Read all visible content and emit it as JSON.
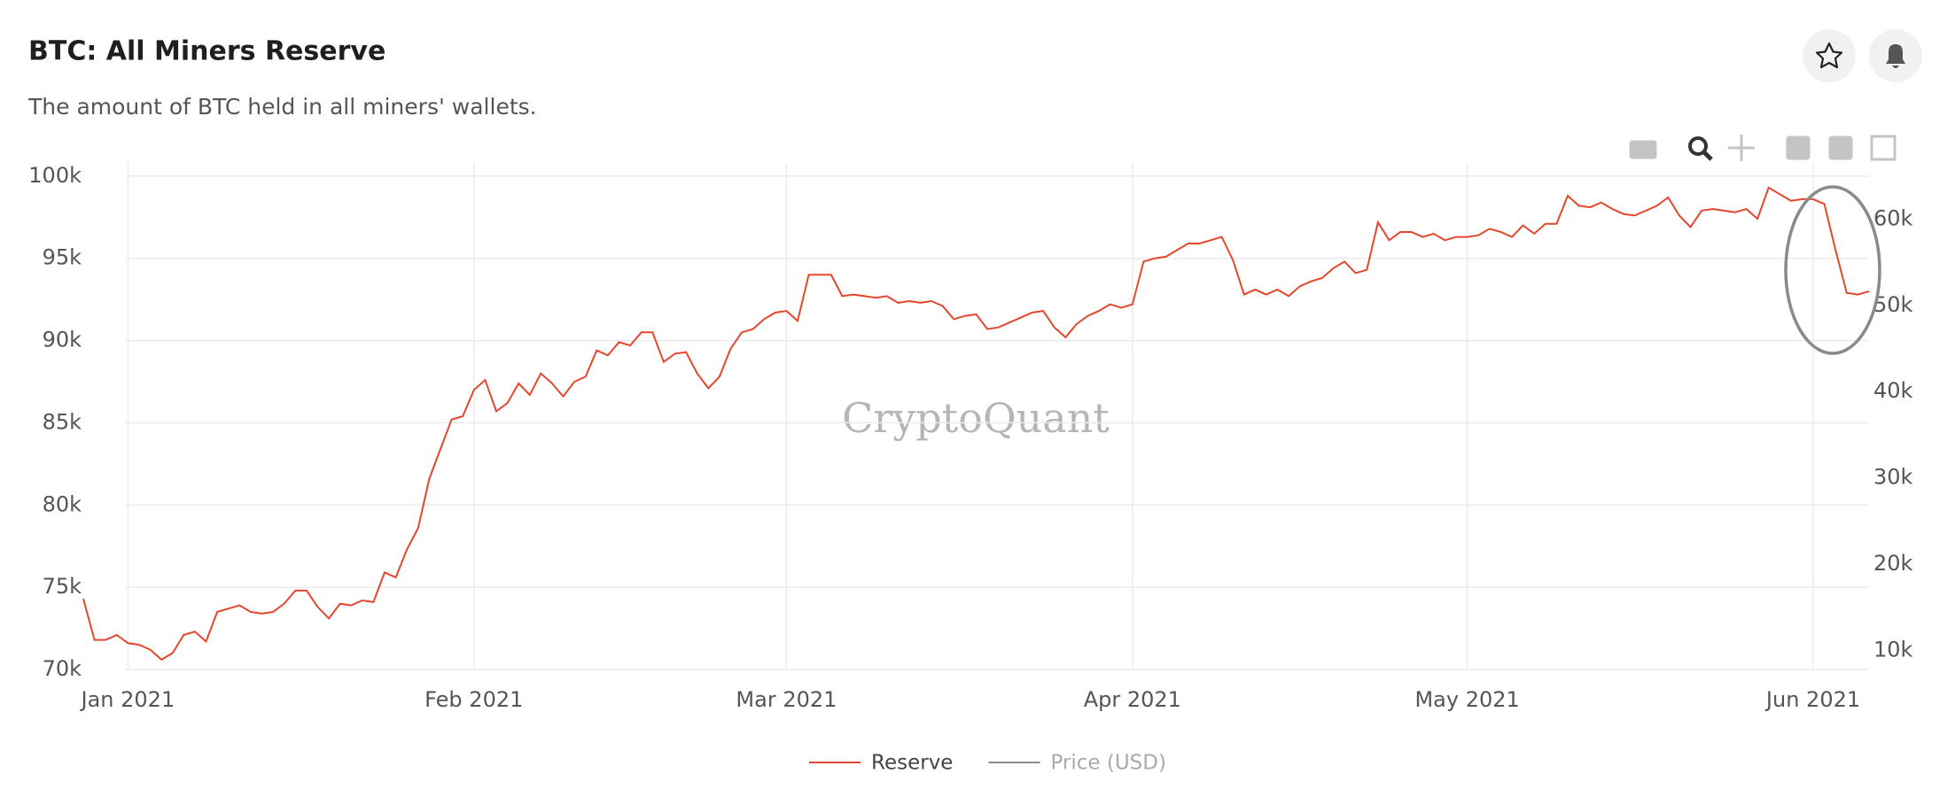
{
  "chart_data": {
    "type": "line",
    "title": "BTC: All Miners Reserve",
    "subtitle": "The amount of BTC held in all miners' wallets.",
    "watermark": "CryptoQuant",
    "categories": [
      null,
      null,
      null,
      null,
      "Jan 2021",
      null,
      null,
      null,
      null,
      null,
      null,
      null,
      null,
      null,
      null,
      null,
      null,
      null,
      null,
      null,
      null,
      null,
      null,
      null,
      null,
      null,
      null,
      null,
      null,
      null,
      null,
      null,
      null,
      null,
      null,
      "Feb 2021",
      null,
      null,
      null,
      null,
      null,
      null,
      null,
      null,
      null,
      null,
      null,
      null,
      null,
      null,
      null,
      null,
      null,
      null,
      null,
      null,
      null,
      null,
      null,
      null,
      null,
      null,
      null,
      "Mar 2021",
      null,
      null,
      null,
      null,
      null,
      null,
      null,
      null,
      null,
      null,
      null,
      null,
      null,
      null,
      null,
      null,
      null,
      null,
      null,
      null,
      null,
      null,
      null,
      null,
      null,
      null,
      null,
      null,
      null,
      null,
      "Apr 2021",
      null,
      null,
      null,
      null,
      null,
      null,
      null,
      null,
      null,
      null,
      null,
      null,
      null,
      null,
      null,
      null,
      null,
      null,
      null,
      null,
      null,
      null,
      null,
      null,
      null,
      null,
      null,
      null,
      null,
      "May 2021",
      null,
      null,
      null,
      null,
      null,
      null,
      null,
      null,
      null,
      null,
      null,
      null,
      null,
      null,
      null,
      null,
      null,
      null,
      null,
      null,
      null,
      null,
      null,
      null,
      null,
      null,
      null,
      null,
      null,
      null,
      "Jun 2021",
      null,
      null,
      null,
      null,
      null
    ],
    "series": [
      {
        "name": "Reserve",
        "color": "#e5472d",
        "values": [
          74300,
          71800,
          71800,
          72100,
          71600,
          71500,
          71200,
          70600,
          71000,
          72100,
          72300,
          71700,
          73500,
          73700,
          73900,
          73500,
          73400,
          73500,
          74000,
          74800,
          74800,
          73800,
          73100,
          74000,
          73900,
          74200,
          74100,
          75900,
          75600,
          77300,
          78600,
          81600,
          83400,
          85200,
          85400,
          87000,
          87600,
          85700,
          86200,
          87400,
          86700,
          88000,
          87400,
          86600,
          87500,
          87800,
          89400,
          89100,
          89900,
          89700,
          90500,
          90500,
          88700,
          89200,
          89300,
          88000,
          87100,
          87800,
          89500,
          90500,
          90700,
          91300,
          91700,
          91800,
          91200,
          94000,
          94000,
          94000,
          92700,
          92800,
          92700,
          92600,
          92700,
          92300,
          92400,
          92300,
          92400,
          92100,
          91300,
          91500,
          91600,
          90700,
          90800,
          91100,
          91400,
          91700,
          91800,
          90800,
          90200,
          91000,
          91500,
          91800,
          92200,
          92000,
          92200,
          94800,
          95000,
          95100,
          95500,
          95900,
          95900,
          96100,
          96300,
          94900,
          92800,
          93100,
          92800,
          93100,
          92700,
          93300,
          93600,
          93800,
          94400,
          94800,
          94100,
          94300,
          97200,
          96100,
          96600,
          96600,
          96300,
          96500,
          96100,
          96300,
          96300,
          96400,
          96800,
          96600,
          96300,
          97000,
          96500,
          97100,
          97100,
          98800,
          98200,
          98100,
          98400,
          98000,
          97700,
          97600,
          97900,
          98200,
          98700,
          97600,
          96900,
          97900,
          98000,
          97900,
          97800,
          98000,
          97400,
          99300,
          98900,
          98500,
          98600,
          98600,
          98300,
          95500,
          92900,
          92800,
          93000
        ]
      }
    ],
    "hidden_series": [
      {
        "name": "Price (USD)",
        "color": "#8a8a8a",
        "axis": "y2"
      }
    ],
    "ylim": [
      70000,
      100800
    ],
    "yticks": [
      {
        "value": 70000,
        "label": "70k"
      },
      {
        "value": 75000,
        "label": "75k"
      },
      {
        "value": 80000,
        "label": "80k"
      },
      {
        "value": 85000,
        "label": "85k"
      },
      {
        "value": 90000,
        "label": "90k"
      },
      {
        "value": 95000,
        "label": "95k"
      },
      {
        "value": 100000,
        "label": "100k"
      }
    ],
    "y2lim": [
      7800,
      66500
    ],
    "y2ticks": [
      {
        "value": 10000,
        "label": "10k"
      },
      {
        "value": 20000,
        "label": "20k"
      },
      {
        "value": 30000,
        "label": "30k"
      },
      {
        "value": 40000,
        "label": "40k"
      },
      {
        "value": 50000,
        "label": "50k"
      },
      {
        "value": 60000,
        "label": "60k"
      }
    ],
    "grid": true
  }
}
